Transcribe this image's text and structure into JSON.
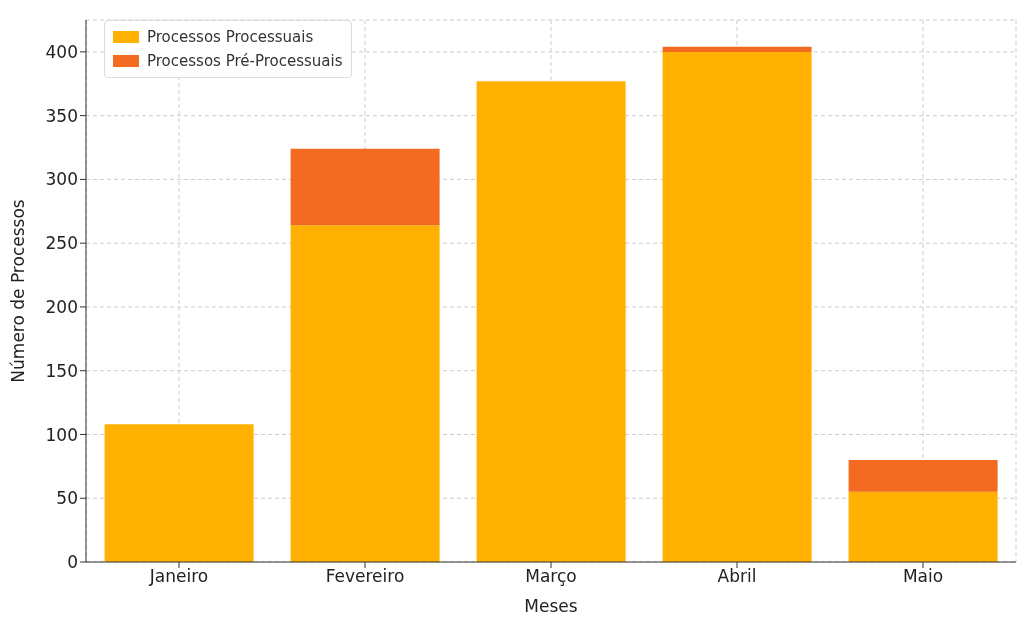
{
  "chart_data": {
    "type": "bar",
    "xlabel": "Meses",
    "ylabel": "Número de Processos",
    "categories": [
      "Janeiro",
      "Fevereiro",
      "Março",
      "Abril",
      "Maio"
    ],
    "series": [
      {
        "name": "Processos Processuais",
        "color": "#ffb000",
        "values": [
          108,
          264,
          377,
          400,
          55
        ]
      },
      {
        "name": "Processos Pré-Processuais",
        "color": "#f26b21",
        "values": [
          0,
          60,
          0,
          4,
          25
        ]
      }
    ],
    "stacked": true,
    "ylim": [
      0,
      425
    ],
    "yticks": [
      0,
      50,
      100,
      150,
      200,
      250,
      300,
      350,
      400
    ],
    "grid": true,
    "legend": "top left"
  }
}
